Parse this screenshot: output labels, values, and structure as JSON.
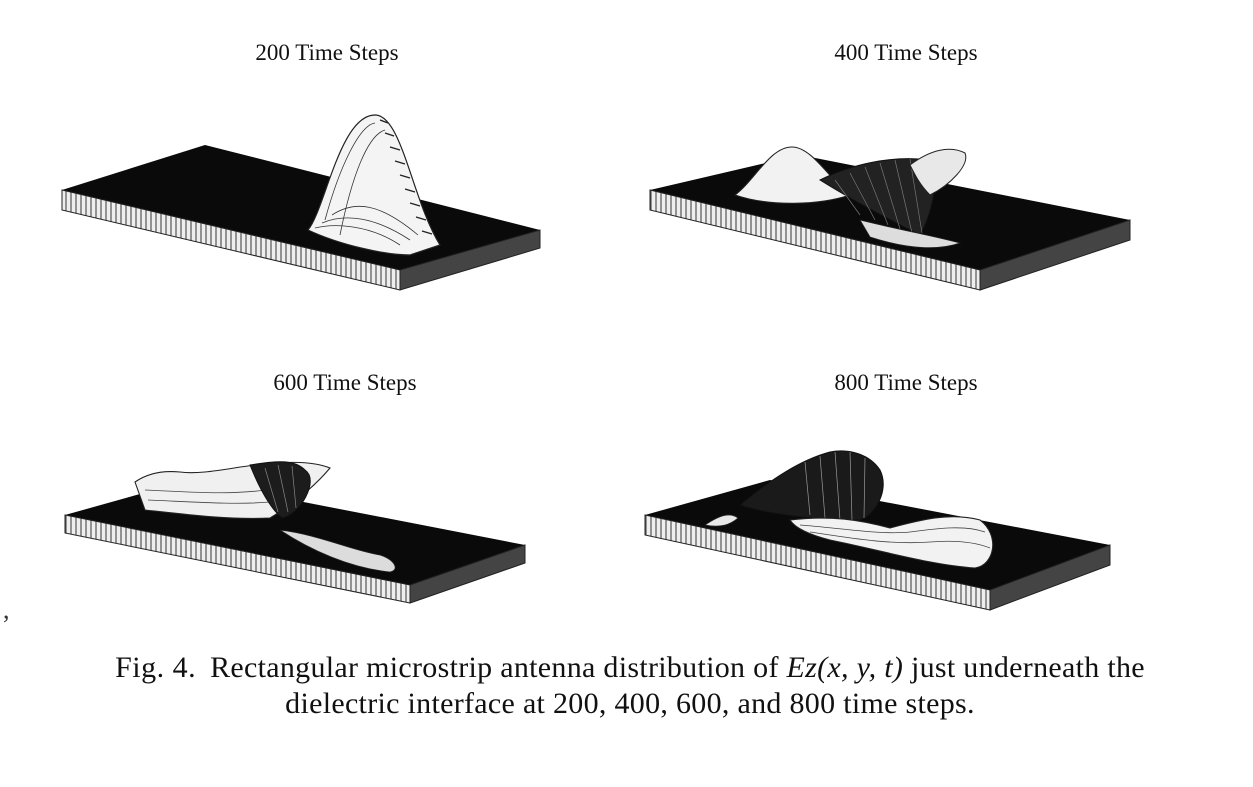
{
  "panels": [
    {
      "title": "200 Time Steps"
    },
    {
      "title": "400 Time Steps"
    },
    {
      "title": "600 Time Steps"
    },
    {
      "title": "800 Time Steps"
    }
  ],
  "margin_mark": ",",
  "caption": {
    "label": "Fig. 4.",
    "text_before": "Rectangular microstrip antenna distribution of ",
    "math": "Ez(x, y, t)",
    "text_after": " just underneath the dielectric interface at 200, 400, 600, and 800 time steps."
  }
}
